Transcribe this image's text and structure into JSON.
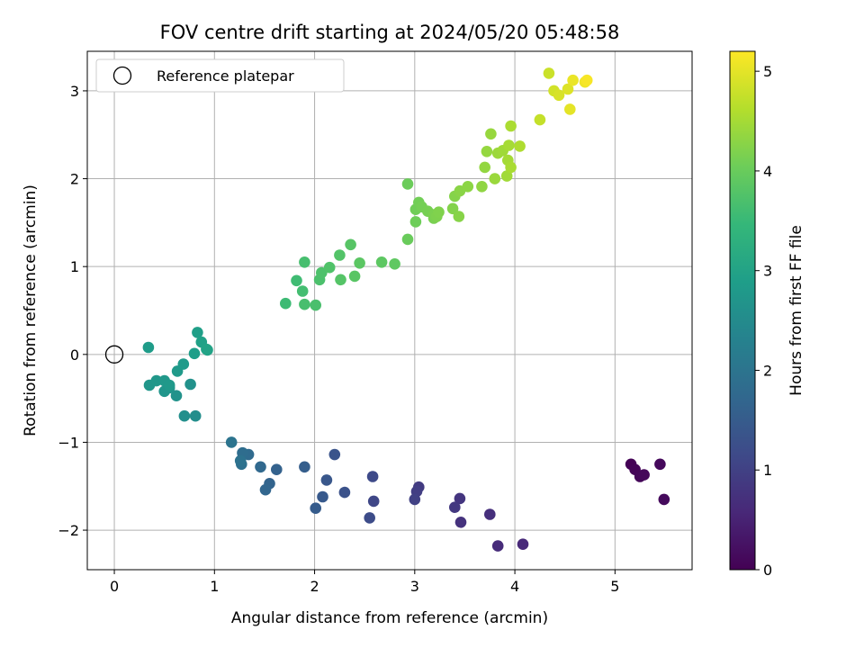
{
  "chart_data": {
    "type": "scatter",
    "title": "FOV centre drift starting at 2024/05/20 05:48:58",
    "xlabel": "Angular distance from reference (arcmin)",
    "ylabel": "Rotation from reference (arcmin)",
    "xlim": [
      -0.27,
      5.77
    ],
    "ylim": [
      -2.45,
      3.45
    ],
    "xticks": [
      0,
      1,
      2,
      3,
      4,
      5
    ],
    "xtick_labels": [
      "0",
      "1",
      "2",
      "3",
      "4",
      "5"
    ],
    "yticks": [
      -2,
      -1,
      0,
      1,
      2,
      3
    ],
    "ytick_labels": [
      "−2",
      "−1",
      "0",
      "1",
      "2",
      "3"
    ],
    "grid": true,
    "legend": {
      "location": "upper-left",
      "entries": [
        "Reference platepar"
      ]
    },
    "reference_point": {
      "x": 0,
      "y": 0,
      "marker": "open-circle"
    },
    "colorbar": {
      "label": "Hours from first FF file",
      "colormap": "viridis",
      "range": [
        0,
        5.2
      ],
      "ticks": [
        0,
        1,
        2,
        3,
        4,
        5
      ],
      "tick_labels": [
        "0",
        "1",
        "2",
        "3",
        "4",
        "5"
      ]
    },
    "points": [
      [
        5.16,
        -1.25,
        0.02
      ],
      [
        5.2,
        -1.31,
        0.05
      ],
      [
        5.25,
        -1.39,
        0.07
      ],
      [
        5.29,
        -1.37,
        0.09
      ],
      [
        5.45,
        -1.25,
        0.11
      ],
      [
        5.49,
        -1.65,
        0.13
      ],
      [
        4.08,
        -2.16,
        0.6
      ],
      [
        3.83,
        -2.18,
        0.65
      ],
      [
        3.75,
        -1.82,
        0.7
      ],
      [
        3.46,
        -1.91,
        0.75
      ],
      [
        3.45,
        -1.64,
        0.8
      ],
      [
        3.4,
        -1.74,
        0.85
      ],
      [
        3.04,
        -1.51,
        0.9
      ],
      [
        3.02,
        -1.56,
        0.95
      ],
      [
        3.0,
        -1.65,
        1.0
      ],
      [
        2.59,
        -1.67,
        1.1
      ],
      [
        2.58,
        -1.39,
        1.15
      ],
      [
        2.55,
        -1.86,
        1.2
      ],
      [
        2.3,
        -1.57,
        1.3
      ],
      [
        2.2,
        -1.14,
        1.35
      ],
      [
        2.12,
        -1.43,
        1.4
      ],
      [
        2.08,
        -1.62,
        1.45
      ],
      [
        2.01,
        -1.75,
        1.5
      ],
      [
        1.9,
        -1.28,
        1.55
      ],
      [
        1.62,
        -1.31,
        1.62
      ],
      [
        1.55,
        -1.47,
        1.66
      ],
      [
        1.51,
        -1.54,
        1.7
      ],
      [
        1.46,
        -1.28,
        1.75
      ],
      [
        1.34,
        -1.14,
        1.8
      ],
      [
        1.28,
        -1.12,
        1.85
      ],
      [
        1.27,
        -1.25,
        1.9
      ],
      [
        1.26,
        -1.21,
        1.95
      ],
      [
        1.17,
        -1.0,
        2.0
      ],
      [
        0.81,
        -0.7,
        2.55
      ],
      [
        0.7,
        -0.7,
        2.58
      ],
      [
        0.76,
        -0.34,
        2.62
      ],
      [
        0.62,
        -0.47,
        2.65
      ],
      [
        0.55,
        -0.38,
        2.68
      ],
      [
        0.5,
        -0.42,
        2.7
      ],
      [
        0.35,
        -0.35,
        2.72
      ],
      [
        0.42,
        -0.3,
        2.74
      ],
      [
        0.5,
        -0.3,
        2.76
      ],
      [
        0.55,
        -0.35,
        2.78
      ],
      [
        0.63,
        -0.19,
        2.8
      ],
      [
        0.69,
        -0.11,
        2.82
      ],
      [
        0.34,
        0.08,
        2.85
      ],
      [
        0.8,
        0.01,
        2.88
      ],
      [
        0.83,
        0.25,
        2.92
      ],
      [
        0.87,
        0.14,
        2.95
      ],
      [
        0.93,
        0.05,
        2.98
      ],
      [
        0.92,
        0.06,
        3.0
      ],
      [
        1.71,
        0.58,
        3.55
      ],
      [
        1.82,
        0.84,
        3.58
      ],
      [
        1.88,
        0.72,
        3.62
      ],
      [
        1.9,
        1.05,
        3.65
      ],
      [
        1.9,
        0.57,
        3.66
      ],
      [
        2.01,
        0.56,
        3.68
      ],
      [
        2.05,
        0.85,
        3.7
      ],
      [
        2.07,
        0.93,
        3.72
      ],
      [
        2.15,
        0.99,
        3.75
      ],
      [
        2.25,
        1.13,
        3.78
      ],
      [
        2.26,
        0.85,
        3.8
      ],
      [
        2.36,
        1.25,
        3.82
      ],
      [
        2.4,
        0.89,
        3.84
      ],
      [
        2.45,
        1.04,
        3.86
      ],
      [
        2.67,
        1.05,
        3.88
      ],
      [
        2.8,
        1.03,
        3.9
      ],
      [
        2.93,
        1.31,
        4.0
      ],
      [
        2.93,
        1.94,
        4.02
      ],
      [
        3.01,
        1.51,
        4.04
      ],
      [
        3.01,
        1.65,
        4.06
      ],
      [
        3.04,
        1.73,
        4.08
      ],
      [
        3.07,
        1.68,
        4.1
      ],
      [
        3.13,
        1.63,
        4.12
      ],
      [
        3.19,
        1.55,
        4.14
      ],
      [
        3.19,
        1.59,
        4.16
      ],
      [
        3.22,
        1.57,
        4.18
      ],
      [
        3.24,
        1.62,
        4.2
      ],
      [
        3.38,
        1.66,
        4.22
      ],
      [
        3.4,
        1.8,
        4.24
      ],
      [
        3.44,
        1.57,
        4.26
      ],
      [
        3.45,
        1.86,
        4.28
      ],
      [
        3.53,
        1.91,
        4.3
      ],
      [
        3.67,
        1.91,
        4.33
      ],
      [
        3.7,
        2.13,
        4.35
      ],
      [
        3.72,
        2.31,
        4.37
      ],
      [
        3.76,
        2.51,
        4.39
      ],
      [
        3.8,
        2.0,
        4.41
      ],
      [
        3.83,
        2.29,
        4.43
      ],
      [
        3.88,
        2.32,
        4.45
      ],
      [
        3.92,
        2.03,
        4.47
      ],
      [
        3.93,
        2.21,
        4.49
      ],
      [
        3.94,
        2.38,
        4.51
      ],
      [
        3.96,
        2.13,
        4.53
      ],
      [
        3.96,
        2.6,
        4.55
      ],
      [
        4.05,
        2.37,
        4.57
      ],
      [
        4.25,
        2.67,
        4.75
      ],
      [
        4.34,
        3.2,
        4.8
      ],
      [
        4.39,
        3.0,
        4.85
      ],
      [
        4.44,
        2.95,
        4.9
      ],
      [
        4.53,
        3.02,
        4.95
      ],
      [
        4.55,
        2.79,
        5.0
      ],
      [
        4.58,
        3.12,
        5.05
      ],
      [
        4.7,
        3.1,
        5.1
      ],
      [
        4.72,
        3.12,
        5.15
      ]
    ]
  }
}
